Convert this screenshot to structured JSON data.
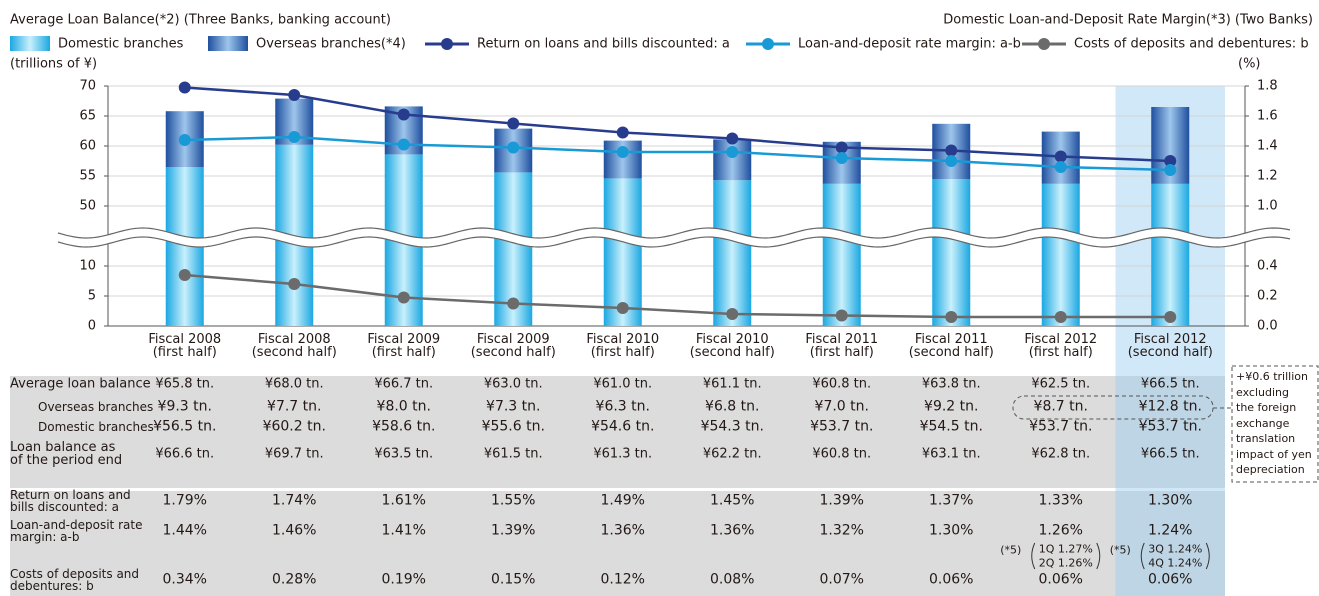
{
  "chart_data": {
    "type": "bar",
    "title": "Average Loan Balance(*2) (Three Banks, banking account)",
    "title_right": "Domestic Loan-and-Deposit Rate Margin(*3) (Two Banks)",
    "y_label": "(trillions of ¥)",
    "y2_label": "(%)",
    "categories": [
      "Fiscal 2008\n(first half)",
      "Fiscal 2008\n(second half)",
      "Fiscal 2009\n(first half)",
      "Fiscal 2009\n(second half)",
      "Fiscal 2010\n(first half)",
      "Fiscal 2010\n(second half)",
      "Fiscal 2011\n(first half)",
      "Fiscal 2011\n(second half)",
      "Fiscal 2012\n(first half)",
      "Fiscal 2012\n(second half)"
    ],
    "ylim": [
      0,
      70
    ],
    "ybreak": [
      10,
      50
    ],
    "yticks": [
      0,
      5,
      10,
      50,
      55,
      60,
      65,
      70
    ],
    "y2lim": [
      0,
      1.8
    ],
    "y2break": [
      0.4,
      1.0
    ],
    "y2ticks": [
      {
        "value": 0,
        "label": "0.0"
      },
      0.2,
      0.4,
      {
        "value": 1,
        "label": "1.0"
      },
      1.2,
      1.4,
      1.6,
      1.8
    ],
    "grid": true,
    "legend": "top",
    "highlight": 9,
    "series": [
      {
        "name": "Domestic branches",
        "type": "bar",
        "color": "#29b6e8",
        "table_label": "Domestic branches",
        "values": [
          56.5,
          60.2,
          58.6,
          55.6,
          54.6,
          54.3,
          53.7,
          54.5,
          53.7,
          53.7
        ],
        "value_labels": [
          "¥56.5 tn.",
          "¥60.2 tn.",
          "¥58.6 tn.",
          "¥55.6 tn.",
          "¥54.6 tn.",
          "¥54.3 tn.",
          "¥53.7 tn.",
          "¥54.5 tn.",
          "¥53.7 tn.",
          "¥53.7 tn."
        ]
      },
      {
        "name": "Overseas branches(*4)",
        "type": "bar",
        "color": "#2a62b4",
        "table_label": "Overseas branches",
        "values": [
          9.3,
          7.7,
          8.0,
          7.3,
          6.3,
          6.8,
          7.0,
          9.2,
          8.7,
          12.8
        ],
        "value_labels": [
          "¥9.3 tn.",
          "¥7.7 tn.",
          "¥8.0 tn.",
          "¥7.3 tn.",
          "¥6.3 tn.",
          "¥6.8 tn.",
          "¥7.0 tn.",
          "¥9.2 tn.",
          "¥8.7 tn.",
          "¥12.8 tn."
        ]
      },
      {
        "name": "Return on loans and bills discounted: a",
        "type": "line",
        "axis": "y2",
        "color": "#283c8e",
        "table_label": "Return on loans and\nbills discounted: a",
        "values": [
          1.79,
          1.74,
          1.61,
          1.55,
          1.49,
          1.45,
          1.39,
          1.37,
          1.33,
          1.3
        ],
        "value_labels": [
          "1.79%",
          "1.74%",
          "1.61%",
          "1.55%",
          "1.49%",
          "1.45%",
          "1.39%",
          "1.37%",
          "1.33%",
          "1.30%"
        ]
      },
      {
        "name": "Loan-and-deposit rate margin: a-b",
        "type": "line",
        "axis": "y2",
        "color": "#189ad6",
        "table_label": "Loan-and-deposit rate\nmargin: a-b",
        "values": [
          1.44,
          1.46,
          1.41,
          1.39,
          1.36,
          1.36,
          1.32,
          1.3,
          1.26,
          1.24
        ],
        "value_labels": [
          "1.44%",
          "1.46%",
          "1.41%",
          "1.39%",
          "1.36%",
          "1.36%",
          "1.32%",
          "1.30%",
          "1.26%",
          "1.24%"
        ]
      },
      {
        "name": "Costs of deposits and debentures: b",
        "type": "line",
        "axis": "y2",
        "color": "#6b6b6b",
        "table_label": "Costs of deposits and\ndebentures: b",
        "values": [
          0.34,
          0.28,
          0.19,
          0.15,
          0.12,
          0.08,
          0.07,
          0.06,
          0.06,
          0.06
        ],
        "value_labels": [
          "0.34%",
          "0.28%",
          "0.19%",
          "0.15%",
          "0.12%",
          "0.08%",
          "0.07%",
          "0.06%",
          "0.06%",
          "0.06%"
        ]
      }
    ],
    "table_rows": [
      {
        "label": "Average loan balance",
        "cells": [
          "¥65.8 tn.",
          "¥68.0 tn.",
          "¥66.7 tn.",
          "¥63.0 tn.",
          "¥61.0 tn.",
          "¥61.1 tn.",
          "¥60.8 tn.",
          "¥63.8 tn.",
          "¥62.5 tn.",
          "¥66.5 tn."
        ]
      },
      {
        "label": "Loan balance as\nof the period end",
        "cells": [
          "¥66.6 tn.",
          "¥69.7 tn.",
          "¥63.5 tn.",
          "¥61.5 tn.",
          "¥61.3 tn.",
          "¥62.2 tn.",
          "¥60.8 tn.",
          "¥63.1 tn.",
          "¥62.8 tn.",
          "¥66.5 tn."
        ]
      }
    ],
    "annotations": [
      {
        "label": "(*5)",
        "lines": [
          "1Q 1.27%",
          "2Q 1.26%"
        ]
      },
      {
        "label": "(*5)",
        "lines": [
          "3Q 1.24%",
          "4Q 1.24%"
        ]
      }
    ],
    "note": "+¥0.6 trillion\nexcluding\nthe foreign\nexchange\ntranslation\nimpact of yen\ndepreciation"
  }
}
